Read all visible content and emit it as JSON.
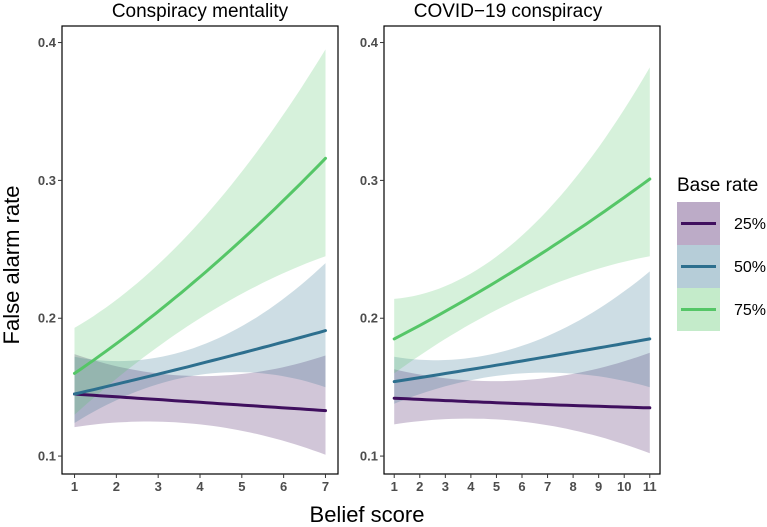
{
  "chart_data": {
    "type": "line",
    "ylabel": "False alarm rate",
    "xlabel": "Belief score",
    "legend": {
      "title": "Base rate",
      "position": "right",
      "entries": [
        {
          "name": "25%",
          "color": "#3f0f5e"
        },
        {
          "name": "50%",
          "color": "#2d6f8e"
        },
        {
          "name": "75%",
          "color": "#55c667"
        }
      ]
    },
    "ylim": [
      0.087,
      0.412
    ],
    "yticks": [
      0.1,
      0.2,
      0.3,
      0.4
    ],
    "ytick_labels": [
      "0.1",
      "0.2",
      "0.3",
      "0.4"
    ],
    "panels": [
      {
        "title": "Conspiracy mentality",
        "xlim": [
          0.7,
          7.3
        ],
        "xticks": [
          1,
          2,
          3,
          4,
          5,
          6,
          7
        ],
        "xtick_labels": [
          "1",
          "2",
          "3",
          "4",
          "5",
          "6",
          "7"
        ],
        "series": [
          {
            "name": "25%",
            "color": "#3f0f5e",
            "x": [
              1,
              4,
              7
            ],
            "y": [
              0.145,
              0.139,
              0.133
            ],
            "lower": [
              0.121,
              0.123,
              0.101
            ],
            "upper": [
              0.174,
              0.158,
              0.173
            ]
          },
          {
            "name": "50%",
            "color": "#2d6f8e",
            "x": [
              1,
              4,
              7
            ],
            "y": [
              0.145,
              0.167,
              0.191
            ],
            "lower": [
              0.124,
              0.159,
              0.15
            ],
            "upper": [
              0.172,
              0.18,
              0.24
            ]
          },
          {
            "name": "75%",
            "color": "#55c667",
            "x": [
              1,
              4,
              7
            ],
            "y": [
              0.16,
              0.23,
              0.316
            ],
            "lower": [
              0.13,
              0.2,
              0.245
            ],
            "upper": [
              0.193,
              0.27,
              0.395
            ]
          }
        ]
      },
      {
        "title": "COVID−19 conspiracy",
        "xlim": [
          0.6,
          11.4
        ],
        "xticks": [
          1,
          2,
          3,
          4,
          5,
          6,
          7,
          8,
          9,
          10,
          11
        ],
        "xtick_labels": [
          "1",
          "2",
          "3",
          "4",
          "5",
          "6",
          "7",
          "8",
          "9",
          "10",
          "11"
        ],
        "series": [
          {
            "name": "25%",
            "color": "#3f0f5e",
            "x": [
              1,
              6,
              11
            ],
            "y": [
              0.142,
              0.138,
              0.135
            ],
            "lower": [
              0.123,
              0.125,
              0.102
            ],
            "upper": [
              0.163,
              0.155,
              0.175
            ]
          },
          {
            "name": "50%",
            "color": "#2d6f8e",
            "x": [
              1,
              6,
              11
            ],
            "y": [
              0.154,
              0.169,
              0.185
            ],
            "lower": [
              0.138,
              0.16,
              0.15
            ],
            "upper": [
              0.172,
              0.18,
              0.234
            ]
          },
          {
            "name": "75%",
            "color": "#55c667",
            "x": [
              1,
              6,
              11
            ],
            "y": [
              0.185,
              0.238,
              0.301
            ],
            "lower": [
              0.16,
              0.215,
              0.245
            ],
            "upper": [
              0.214,
              0.26,
              0.382
            ]
          }
        ]
      }
    ]
  }
}
